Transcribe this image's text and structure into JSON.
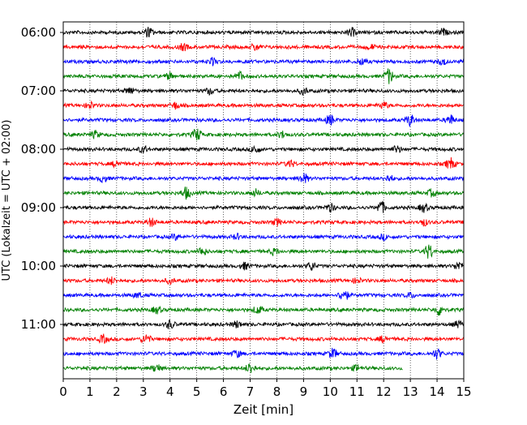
{
  "chart_data": {
    "type": "line",
    "title": "",
    "xlabel": "Zeit  [min]",
    "ylabel": "UTC (Lokalzeit = UTC + 02:00)",
    "xlim": [
      0,
      15
    ],
    "x_ticks": [
      "0",
      "1",
      "2",
      "3",
      "4",
      "5",
      "6",
      "7",
      "8",
      "9",
      "10",
      "11",
      "12",
      "13",
      "14",
      "15"
    ],
    "y_tick_labels": [
      "06:00",
      "07:00",
      "08:00",
      "09:00",
      "10:00",
      "11:00"
    ],
    "grid": "vertical dotted",
    "trace_interval_min": 15,
    "trace_colors": [
      "#000000",
      "#ff0000",
      "#0000ff",
      "#008000"
    ],
    "series": [
      {
        "start": "06:00",
        "color": "#000000",
        "xmax": 15,
        "bursts": [
          [
            3.2,
            6
          ],
          [
            10.8,
            5
          ],
          [
            14.2,
            4
          ]
        ]
      },
      {
        "start": "06:15",
        "color": "#ff0000",
        "xmax": 15,
        "bursts": [
          [
            4.5,
            4
          ],
          [
            7.2,
            4
          ],
          [
            11.5,
            3
          ]
        ]
      },
      {
        "start": "06:30",
        "color": "#0000ff",
        "xmax": 15,
        "bursts": [
          [
            5.6,
            4
          ],
          [
            11.2,
            4
          ],
          [
            14.2,
            4
          ]
        ]
      },
      {
        "start": "06:45",
        "color": "#008000",
        "xmax": 15,
        "bursts": [
          [
            4.0,
            4
          ],
          [
            6.6,
            5
          ],
          [
            12.2,
            9
          ]
        ]
      },
      {
        "start": "07:00",
        "color": "#000000",
        "xmax": 15,
        "bursts": [
          [
            2.5,
            4
          ],
          [
            5.5,
            4
          ],
          [
            9.0,
            4
          ]
        ]
      },
      {
        "start": "07:15",
        "color": "#ff0000",
        "xmax": 15,
        "bursts": [
          [
            1.0,
            4
          ],
          [
            4.2,
            4
          ],
          [
            12.0,
            4
          ]
        ]
      },
      {
        "start": "07:30",
        "color": "#0000ff",
        "xmax": 15,
        "bursts": [
          [
            10.0,
            6
          ],
          [
            13.0,
            7
          ],
          [
            14.5,
            6
          ]
        ]
      },
      {
        "start": "07:45",
        "color": "#008000",
        "xmax": 15,
        "bursts": [
          [
            1.2,
            4
          ],
          [
            5.0,
            8
          ],
          [
            8.2,
            4
          ]
        ]
      },
      {
        "start": "08:00",
        "color": "#000000",
        "xmax": 15,
        "bursts": [
          [
            3.0,
            4
          ],
          [
            7.2,
            5
          ],
          [
            12.5,
            4
          ]
        ]
      },
      {
        "start": "08:15",
        "color": "#ff0000",
        "xmax": 15,
        "bursts": [
          [
            2.0,
            4
          ],
          [
            8.5,
            4
          ],
          [
            14.5,
            7
          ]
        ]
      },
      {
        "start": "08:30",
        "color": "#0000ff",
        "xmax": 15,
        "bursts": [
          [
            1.5,
            4
          ],
          [
            9.0,
            6
          ],
          [
            12.2,
            4
          ]
        ]
      },
      {
        "start": "08:45",
        "color": "#008000",
        "xmax": 15,
        "bursts": [
          [
            4.6,
            7
          ],
          [
            7.2,
            4
          ],
          [
            13.8,
            4
          ]
        ]
      },
      {
        "start": "09:00",
        "color": "#000000",
        "xmax": 15,
        "bursts": [
          [
            10.0,
            5
          ],
          [
            11.9,
            8
          ],
          [
            13.5,
            5
          ]
        ]
      },
      {
        "start": "09:15",
        "color": "#ff0000",
        "xmax": 15,
        "bursts": [
          [
            3.3,
            5
          ],
          [
            8.0,
            4
          ],
          [
            13.5,
            4
          ]
        ]
      },
      {
        "start": "09:30",
        "color": "#0000ff",
        "xmax": 15,
        "bursts": [
          [
            4.2,
            3
          ],
          [
            6.5,
            3
          ],
          [
            12.0,
            3
          ]
        ]
      },
      {
        "start": "09:45",
        "color": "#008000",
        "xmax": 15,
        "bursts": [
          [
            5.2,
            5
          ],
          [
            7.9,
            4
          ],
          [
            13.7,
            9
          ]
        ]
      },
      {
        "start": "10:00",
        "color": "#000000",
        "xmax": 15,
        "bursts": [
          [
            6.8,
            4
          ],
          [
            9.3,
            5
          ],
          [
            14.8,
            5
          ]
        ]
      },
      {
        "start": "10:15",
        "color": "#ff0000",
        "xmax": 15,
        "bursts": [
          [
            1.8,
            4
          ],
          [
            4.0,
            3
          ],
          [
            11.0,
            3
          ]
        ]
      },
      {
        "start": "10:30",
        "color": "#0000ff",
        "xmax": 15,
        "bursts": [
          [
            2.8,
            3
          ],
          [
            10.5,
            8
          ],
          [
            13.0,
            3
          ]
        ]
      },
      {
        "start": "10:45",
        "color": "#008000",
        "xmax": 15,
        "bursts": [
          [
            3.5,
            4
          ],
          [
            7.3,
            5
          ],
          [
            14.1,
            7
          ]
        ]
      },
      {
        "start": "11:00",
        "color": "#000000",
        "xmax": 15,
        "bursts": [
          [
            4.0,
            5
          ],
          [
            6.5,
            4
          ],
          [
            14.8,
            4
          ]
        ]
      },
      {
        "start": "11:15",
        "color": "#ff0000",
        "xmax": 15,
        "bursts": [
          [
            1.5,
            5
          ],
          [
            3.1,
            6
          ],
          [
            12.0,
            4
          ]
        ]
      },
      {
        "start": "11:30",
        "color": "#0000ff",
        "xmax": 15,
        "bursts": [
          [
            6.5,
            4
          ],
          [
            10.1,
            6
          ],
          [
            14.0,
            6
          ]
        ]
      },
      {
        "start": "11:45",
        "color": "#008000",
        "xmax": 12.7,
        "bursts": [
          [
            3.5,
            5
          ],
          [
            7.0,
            6
          ],
          [
            11.0,
            4
          ]
        ]
      }
    ]
  }
}
